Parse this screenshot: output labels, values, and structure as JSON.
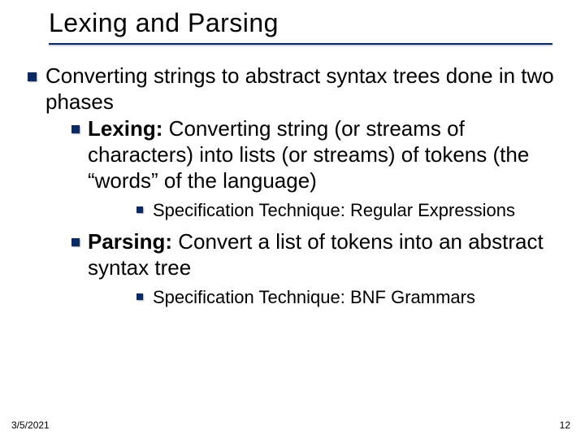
{
  "slide": {
    "title": "Lexing and Parsing",
    "title_fontsize": 32,
    "title_color": "#000000",
    "underline_color": "#0a2a66",
    "bullet_color": "#0a2a66",
    "background_color": "#ffffff",
    "body_fontsize_lvl1": 26,
    "body_fontsize_lvl2": 26,
    "body_fontsize_lvl3": 22,
    "main": {
      "intro": "Converting strings to abstract syntax trees done in two phases",
      "lexing_label": "Lexing:",
      "lexing_rest": " Converting string (or streams of characters) into lists (or streams) of tokens (the “words” of the language)",
      "lexing_spec": "Specification Technique: Regular Expressions",
      "parsing_label": "Parsing:",
      "parsing_rest": " Convert a list of tokens into an abstract syntax tree",
      "parsing_spec": "Specification Technique: BNF Grammars"
    },
    "footer": {
      "date": "3/5/2021",
      "page": "12"
    }
  }
}
